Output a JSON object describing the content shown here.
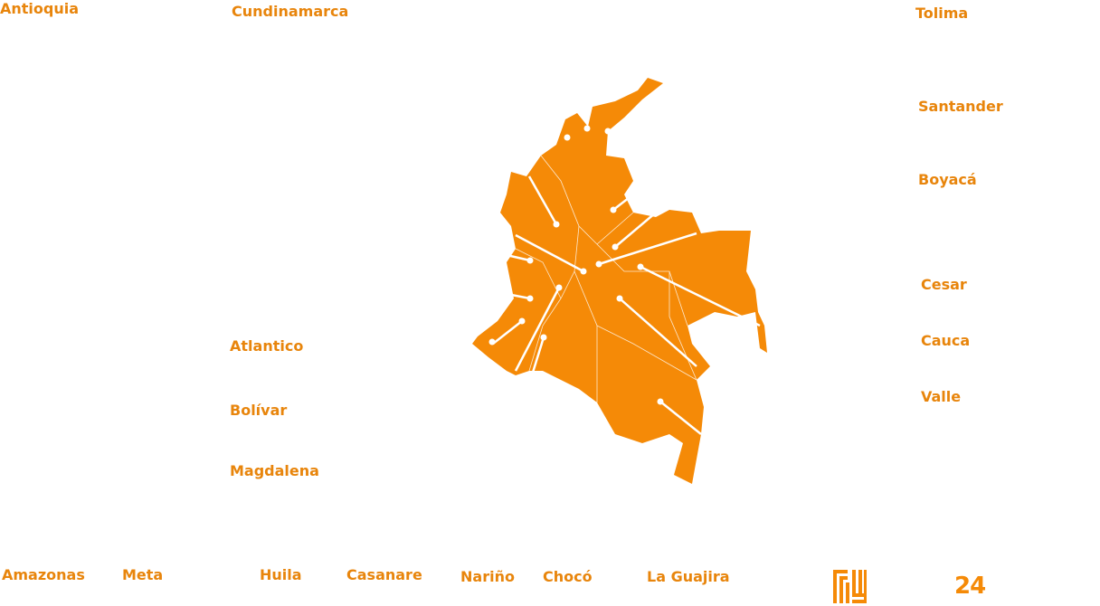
{
  "regions": [
    "Antioquia",
    "Cundinamarca",
    "Tolima",
    "Santander",
    "Boyacá",
    "Cesar",
    "Cauca",
    "Valle",
    "Atlantico",
    "Bolívar",
    "Magdalena",
    "Amazonas",
    "Meta",
    "Huila",
    "Casanare",
    "Nariño",
    "Chocó",
    "La Guajira"
  ],
  "page_number": "24"
}
